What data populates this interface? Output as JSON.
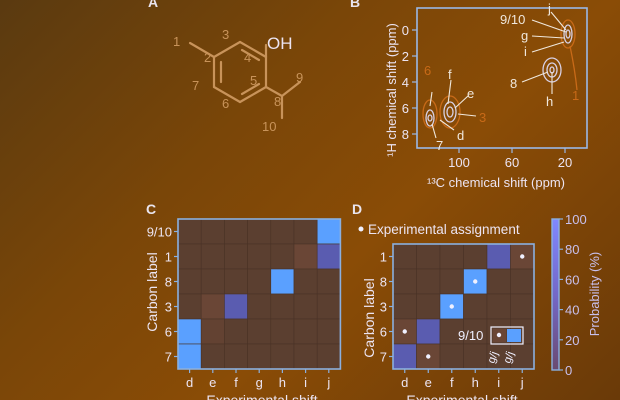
{
  "colors": {
    "molecule": "#c8935a",
    "orange_contour": "#c86a18",
    "label_light": "#f0e8dd",
    "frame": "#8ab0e0",
    "cell_base": "#5b3f30",
    "cell_low": "#6a4636",
    "cell_mid": "#5a5cb0",
    "cell_high": "#5aa0ff",
    "colorbar_top": "#7e88ff",
    "colorbar_bottom": "#9aa0ff"
  },
  "panels": {
    "a": "A",
    "b": "B",
    "c": "C",
    "d": "D"
  },
  "molecule": {
    "oh_label": "OH",
    "ring_numbers": [
      "1",
      "2",
      "3",
      "4",
      "5",
      "6",
      "7",
      "8",
      "9",
      "10"
    ]
  },
  "nmr": {
    "ylabel": "¹H chemical shift (ppm)",
    "xlabel": "¹³C chemical shift (ppm)",
    "yticks": [
      "0",
      "2",
      "4",
      "6",
      "8"
    ],
    "xticks": [
      "100",
      "60",
      "20"
    ],
    "peak_labels": [
      "9/10",
      "j",
      "g",
      "i",
      "8",
      "h",
      "6",
      "f",
      "e",
      "3",
      "d",
      "7",
      "1"
    ]
  },
  "heatmap_c": {
    "ylabel": "Carbon label",
    "xlabel": "Experimental shift",
    "rows": [
      "9/10",
      "1",
      "8",
      "3",
      "6",
      "7"
    ],
    "cols": [
      "d",
      "e",
      "f",
      "g",
      "h",
      "i",
      "j"
    ],
    "probabilities": [
      [
        0,
        0,
        0,
        0,
        0,
        0,
        100
      ],
      [
        0,
        0,
        0,
        0,
        0,
        15,
        60
      ],
      [
        0,
        0,
        0,
        0,
        100,
        0,
        0
      ],
      [
        0,
        10,
        60,
        0,
        0,
        0,
        0
      ],
      [
        100,
        5,
        0,
        0,
        0,
        0,
        0
      ],
      [
        100,
        0,
        0,
        0,
        0,
        0,
        0
      ]
    ]
  },
  "heatmap_d": {
    "legend": "Experimental assignment",
    "ylabel": "Carbon label",
    "xlabel": "Experimental shift",
    "rows": [
      "1",
      "8",
      "3",
      "6",
      "7"
    ],
    "cols": [
      "d",
      "e",
      "f",
      "h",
      "i",
      "j"
    ],
    "probabilities": [
      [
        0,
        0,
        0,
        0,
        70,
        20
      ],
      [
        0,
        0,
        0,
        100,
        0,
        0
      ],
      [
        0,
        0,
        100,
        0,
        0,
        0
      ],
      [
        15,
        70,
        0,
        0,
        0,
        0
      ],
      [
        60,
        15,
        0,
        0,
        0,
        0
      ]
    ],
    "assignment_dots": [
      [
        0,
        5
      ],
      [
        1,
        3
      ],
      [
        2,
        2
      ],
      [
        3,
        0
      ],
      [
        4,
        1
      ]
    ],
    "inset_label": "9/10",
    "inset_cols": [
      "g/j",
      "g/j"
    ],
    "colorbar_label": "Probability (%)",
    "colorbar_ticks": [
      "100",
      "80",
      "60",
      "40",
      "20",
      "0"
    ]
  }
}
